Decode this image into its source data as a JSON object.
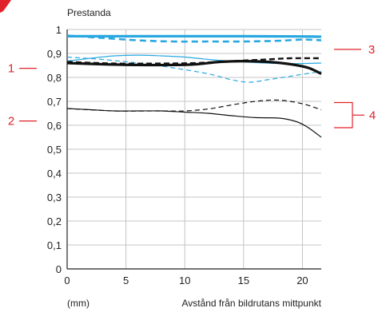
{
  "chart_data": {
    "type": "line",
    "ylabel": "Prestanda",
    "xlabel": "Avstånd från bildrutans mittpunkt",
    "xunit": "(mm)",
    "xlim": [
      0,
      21.6
    ],
    "ylim": [
      0,
      1
    ],
    "xticks": [
      0,
      5,
      10,
      15,
      20
    ],
    "xtick_labels": [
      "0",
      "5",
      "10",
      "15",
      "20"
    ],
    "yticks": [
      0,
      0.1,
      0.2,
      0.3,
      0.4,
      0.5,
      0.6,
      0.7,
      0.8,
      0.9,
      1
    ],
    "ytick_labels": [
      "0",
      "0,1",
      "0,2",
      "0,3",
      "0,4",
      "0,5",
      "0,6",
      "0,7",
      "0,8",
      "0,9",
      "1"
    ],
    "grid": true,
    "series": [
      {
        "key": "blue-thick-solid",
        "color": "#29a8e0",
        "width": 3.2,
        "dash": "",
        "points": [
          [
            0,
            0.972
          ],
          [
            5,
            0.972
          ],
          [
            10,
            0.972
          ],
          [
            15,
            0.972
          ],
          [
            20,
            0.971
          ],
          [
            21.6,
            0.97
          ]
        ]
      },
      {
        "key": "blue-thick-dashed",
        "color": "#29a8e0",
        "width": 2.6,
        "dash": "8,5",
        "points": [
          [
            0,
            0.975
          ],
          [
            3,
            0.965
          ],
          [
            6,
            0.955
          ],
          [
            9,
            0.95
          ],
          [
            12,
            0.95
          ],
          [
            15,
            0.95
          ],
          [
            18,
            0.953
          ],
          [
            20,
            0.958
          ],
          [
            21.6,
            0.955
          ]
        ]
      },
      {
        "key": "blue-thin-solid",
        "color": "#29a8e0",
        "width": 1.2,
        "dash": "",
        "points": [
          [
            0,
            0.868
          ],
          [
            2,
            0.88
          ],
          [
            4,
            0.89
          ],
          [
            6,
            0.893
          ],
          [
            8,
            0.89
          ],
          [
            10,
            0.885
          ],
          [
            12,
            0.875
          ],
          [
            14,
            0.868
          ],
          [
            16,
            0.862
          ],
          [
            18,
            0.858
          ],
          [
            20,
            0.858
          ],
          [
            21.6,
            0.86
          ]
        ]
      },
      {
        "key": "blue-thin-dashed",
        "color": "#29a8e0",
        "width": 1.2,
        "dash": "6,4",
        "points": [
          [
            0,
            0.885
          ],
          [
            3,
            0.875
          ],
          [
            6,
            0.86
          ],
          [
            9,
            0.84
          ],
          [
            12,
            0.815
          ],
          [
            14,
            0.79
          ],
          [
            15.5,
            0.78
          ],
          [
            17,
            0.79
          ],
          [
            19,
            0.805
          ],
          [
            21.6,
            0.825
          ]
        ]
      },
      {
        "key": "black-thick-solid",
        "color": "#111111",
        "width": 3.2,
        "dash": "",
        "points": [
          [
            0,
            0.86
          ],
          [
            3,
            0.855
          ],
          [
            6,
            0.852
          ],
          [
            9,
            0.852
          ],
          [
            11,
            0.855
          ],
          [
            13,
            0.865
          ],
          [
            15,
            0.868
          ],
          [
            17,
            0.865
          ],
          [
            19,
            0.855
          ],
          [
            20.5,
            0.84
          ],
          [
            21.6,
            0.815
          ]
        ]
      },
      {
        "key": "black-thick-dashed",
        "color": "#111111",
        "width": 2.4,
        "dash": "7,4",
        "points": [
          [
            0,
            0.865
          ],
          [
            4,
            0.858
          ],
          [
            8,
            0.858
          ],
          [
            11,
            0.86
          ],
          [
            14,
            0.868
          ],
          [
            17,
            0.875
          ],
          [
            19,
            0.88
          ],
          [
            21.6,
            0.88
          ]
        ]
      },
      {
        "key": "black-thin-solid",
        "color": "#111111",
        "width": 1.2,
        "dash": "",
        "points": [
          [
            0,
            0.67
          ],
          [
            2,
            0.665
          ],
          [
            4,
            0.66
          ],
          [
            6,
            0.66
          ],
          [
            8,
            0.66
          ],
          [
            10,
            0.655
          ],
          [
            12,
            0.65
          ],
          [
            14,
            0.64
          ],
          [
            16,
            0.632
          ],
          [
            18,
            0.63
          ],
          [
            19.5,
            0.615
          ],
          [
            20.5,
            0.59
          ],
          [
            21.6,
            0.55
          ]
        ]
      },
      {
        "key": "black-thin-dashed",
        "color": "#111111",
        "width": 1.2,
        "dash": "6,4",
        "points": [
          [
            0,
            0.67
          ],
          [
            4,
            0.66
          ],
          [
            8,
            0.66
          ],
          [
            10,
            0.66
          ],
          [
            12,
            0.668
          ],
          [
            14,
            0.685
          ],
          [
            16,
            0.7
          ],
          [
            18,
            0.705
          ],
          [
            20,
            0.69
          ],
          [
            21.6,
            0.665
          ]
        ]
      }
    ],
    "callouts": [
      {
        "label": "1",
        "side": "left",
        "target": 0.838
      },
      {
        "label": "2",
        "side": "left",
        "target": 0.618
      },
      {
        "label": "3",
        "side": "right",
        "target": 0.917
      },
      {
        "label": "4",
        "side": "right",
        "range": [
          0.59,
          0.695
        ]
      }
    ]
  }
}
